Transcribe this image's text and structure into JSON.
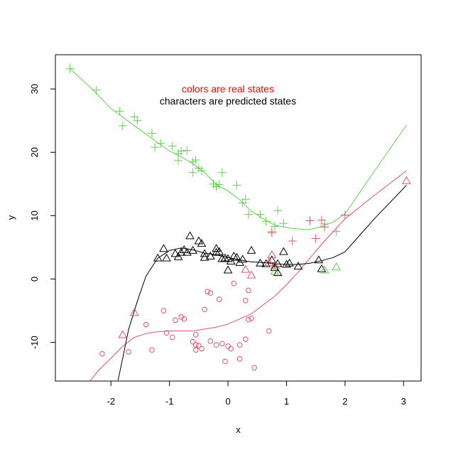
{
  "chart_data": {
    "type": "scatter",
    "xlabel": "x",
    "ylabel": "y",
    "xlim": [
      -2.95,
      3.3
    ],
    "ylim": [
      -16.1,
      35.4
    ],
    "xticks": [
      -2,
      -1,
      0,
      1,
      2,
      3
    ],
    "yticks": [
      -10,
      0,
      10,
      20,
      30
    ],
    "grid": false,
    "annotations": [
      {
        "text": "colors are real states",
        "color": "#ff0000",
        "x": 0,
        "y": 29.8
      },
      {
        "text": "characters are predicted states",
        "color": "#000000",
        "x": 0,
        "y": 27.8
      }
    ],
    "colors": {
      "red": "#df536b",
      "green": "#61d04f",
      "black": "#000000"
    },
    "curves": [
      {
        "color": "#61d04f",
        "points": [
          [
            -2.7,
            33.2
          ],
          [
            -2.3,
            29.8
          ],
          [
            -2.0,
            26.9
          ],
          [
            -1.6,
            24.2
          ],
          [
            -1.3,
            22.2
          ],
          [
            -1.0,
            20.2
          ],
          [
            -0.8,
            19.3
          ],
          [
            -0.6,
            18.2
          ],
          [
            -0.4,
            16.8
          ],
          [
            -0.2,
            14.9
          ],
          [
            0.0,
            13.9
          ],
          [
            0.2,
            12.5
          ],
          [
            0.4,
            10.7
          ],
          [
            0.6,
            9.5
          ],
          [
            0.8,
            8.5
          ],
          [
            1.0,
            8.1
          ],
          [
            1.2,
            7.9
          ],
          [
            1.4,
            7.8
          ],
          [
            1.6,
            8.3
          ],
          [
            1.8,
            9.0
          ],
          [
            2.0,
            10.3
          ],
          [
            2.5,
            17.0
          ],
          [
            3.05,
            24.3
          ]
        ]
      },
      {
        "color": "#df536b",
        "points": [
          [
            -2.35,
            -16.0
          ],
          [
            -2.2,
            -14.3
          ],
          [
            -2.0,
            -12.5
          ],
          [
            -1.8,
            -10.6
          ],
          [
            -1.6,
            -9.2
          ],
          [
            -1.4,
            -8.6
          ],
          [
            -1.2,
            -8.3
          ],
          [
            -1.0,
            -8.2
          ],
          [
            -0.8,
            -8.2
          ],
          [
            -0.6,
            -8.2
          ],
          [
            -0.4,
            -7.9
          ],
          [
            -0.2,
            -7.6
          ],
          [
            0.0,
            -7.1
          ],
          [
            0.2,
            -6.3
          ],
          [
            0.4,
            -5.5
          ],
          [
            0.6,
            -4.1
          ],
          [
            0.8,
            -2.7
          ],
          [
            1.0,
            -0.9
          ],
          [
            1.2,
            1.1
          ],
          [
            1.4,
            3.3
          ],
          [
            1.6,
            5.5
          ],
          [
            2.0,
            9.5
          ],
          [
            2.5,
            13.2
          ],
          [
            3.05,
            17.1
          ]
        ]
      },
      {
        "color": "#000000",
        "points": [
          [
            -1.88,
            -16.0
          ],
          [
            -1.8,
            -12.5
          ],
          [
            -1.7,
            -8.0
          ],
          [
            -1.55,
            -3.5
          ],
          [
            -1.4,
            0.5
          ],
          [
            -1.2,
            3.3
          ],
          [
            -1.0,
            4.5
          ],
          [
            -0.8,
            4.9
          ],
          [
            -0.6,
            4.6
          ],
          [
            -0.4,
            4.1
          ],
          [
            -0.2,
            3.8
          ],
          [
            0.0,
            3.4
          ],
          [
            0.2,
            3.0
          ],
          [
            0.4,
            2.7
          ],
          [
            0.6,
            2.6
          ],
          [
            0.8,
            2.4
          ],
          [
            1.0,
            2.3
          ],
          [
            1.2,
            2.3
          ],
          [
            1.4,
            2.5
          ],
          [
            1.6,
            2.9
          ],
          [
            1.8,
            3.4
          ],
          [
            2.0,
            4.3
          ],
          [
            2.5,
            9.5
          ],
          [
            3.05,
            14.8
          ]
        ]
      }
    ],
    "series": [
      {
        "marker": "plus",
        "color": "#61d04f",
        "points": [
          [
            -2.7,
            33.2
          ],
          [
            -2.25,
            29.8
          ],
          [
            -1.85,
            26.5
          ],
          [
            -1.8,
            24.2
          ],
          [
            -1.6,
            25.6
          ],
          [
            -1.55,
            25.0
          ],
          [
            -1.3,
            23.0
          ],
          [
            -1.25,
            20.8
          ],
          [
            -1.15,
            21.4
          ],
          [
            -0.95,
            21.0
          ],
          [
            -0.85,
            19.8
          ],
          [
            -0.8,
            20.2
          ],
          [
            -0.7,
            20.3
          ],
          [
            -0.85,
            18.7
          ],
          [
            -0.6,
            18.5
          ],
          [
            -0.55,
            18.8
          ],
          [
            -0.6,
            16.8
          ],
          [
            -0.5,
            17.5
          ],
          [
            -0.45,
            17.1
          ],
          [
            -0.25,
            15.0
          ],
          [
            -0.2,
            14.6
          ],
          [
            -0.15,
            14.9
          ],
          [
            -0.1,
            16.8
          ],
          [
            0.15,
            14.8
          ],
          [
            0.25,
            12.0
          ],
          [
            0.3,
            12.6
          ],
          [
            0.35,
            10.2
          ],
          [
            0.55,
            10.2
          ],
          [
            0.65,
            9.1
          ],
          [
            0.75,
            7.5
          ],
          [
            0.8,
            8.3
          ],
          [
            0.85,
            10.8
          ],
          [
            0.95,
            8.8
          ],
          [
            1.65,
            8.7
          ],
          [
            1.85,
            7.5
          ]
        ]
      },
      {
        "marker": "plus",
        "color": "#df536b",
        "points": [
          [
            0.75,
            7.3
          ],
          [
            1.1,
            6.0
          ],
          [
            1.4,
            9.2
          ],
          [
            1.5,
            6.4
          ],
          [
            1.6,
            9.3
          ],
          [
            1.65,
            8.2
          ],
          [
            2.0,
            10.1
          ]
        ]
      },
      {
        "marker": "triangle",
        "color": "#000000",
        "points": [
          [
            -1.2,
            3.3
          ],
          [
            -1.1,
            4.8
          ],
          [
            -1.05,
            3.3
          ],
          [
            -0.9,
            4.0
          ],
          [
            -0.85,
            3.5
          ],
          [
            -0.8,
            4.2
          ],
          [
            -0.75,
            4.6
          ],
          [
            -0.7,
            4.2
          ],
          [
            -0.65,
            6.8
          ],
          [
            -0.6,
            4.5
          ],
          [
            -0.5,
            6.0
          ],
          [
            -0.45,
            5.6
          ],
          [
            -0.4,
            4.0
          ],
          [
            -0.4,
            3.4
          ],
          [
            -0.3,
            3.6
          ],
          [
            -0.2,
            4.2
          ],
          [
            -0.2,
            4.8
          ],
          [
            -0.15,
            4.3
          ],
          [
            -0.1,
            3.2
          ],
          [
            -0.05,
            3.3
          ],
          [
            0.0,
            3.2
          ],
          [
            0.05,
            2.8
          ],
          [
            0.1,
            3.6
          ],
          [
            0.15,
            3.4
          ],
          [
            0.2,
            2.6
          ],
          [
            0.25,
            3.1
          ],
          [
            0.4,
            4.5
          ],
          [
            0.55,
            2.5
          ],
          [
            0.65,
            2.4
          ],
          [
            0.75,
            3.0
          ],
          [
            0.8,
            1.8
          ],
          [
            0.85,
            2.4
          ],
          [
            0.85,
            1.0
          ],
          [
            0.95,
            4.3
          ],
          [
            1.0,
            2.3
          ],
          [
            1.05,
            2.5
          ],
          [
            1.2,
            2.0
          ],
          [
            1.55,
            3.0
          ],
          [
            1.6,
            1.6
          ],
          [
            0.0,
            1.4
          ]
        ]
      },
      {
        "marker": "triangle",
        "color": "#df536b",
        "points": [
          [
            -1.8,
            -8.8
          ],
          [
            -1.6,
            -5.3
          ],
          [
            0.3,
            1.5
          ],
          [
            0.4,
            0.6
          ],
          [
            0.7,
            2.6
          ],
          [
            0.75,
            3.8
          ],
          [
            0.8,
            2.1
          ],
          [
            3.05,
            15.5
          ]
        ]
      },
      {
        "marker": "triangle",
        "color": "#61d04f",
        "points": [
          [
            1.65,
            1.4
          ],
          [
            1.85,
            1.9
          ],
          [
            0.8,
            1.2
          ]
        ]
      },
      {
        "marker": "circle",
        "color": "#df536b",
        "points": [
          [
            -2.15,
            -11.8
          ],
          [
            -1.7,
            -11.5
          ],
          [
            -1.3,
            -11.2
          ],
          [
            -1.4,
            -7.2
          ],
          [
            -1.1,
            -5.0
          ],
          [
            -1.05,
            -8.5
          ],
          [
            -0.95,
            -9.2
          ],
          [
            -0.9,
            -6.5
          ],
          [
            -0.8,
            -6.0
          ],
          [
            -0.75,
            -6.3
          ],
          [
            -0.6,
            -9.9
          ],
          [
            -0.55,
            -10.4
          ],
          [
            -0.55,
            -11.2
          ],
          [
            -0.5,
            -10.5
          ],
          [
            -0.45,
            -11.0
          ],
          [
            -0.4,
            -4.8
          ],
          [
            -0.35,
            -2.0
          ],
          [
            -0.3,
            -2.2
          ],
          [
            -0.3,
            -9.8
          ],
          [
            -0.2,
            -10.4
          ],
          [
            -0.15,
            -3.2
          ],
          [
            -0.1,
            -10.2
          ],
          [
            -0.05,
            -13.0
          ],
          [
            0.0,
            -10.6
          ],
          [
            0.05,
            -11.0
          ],
          [
            0.1,
            -0.7
          ],
          [
            0.2,
            -10.4
          ],
          [
            0.2,
            -12.6
          ],
          [
            0.3,
            -3.4
          ],
          [
            0.35,
            -1.8
          ],
          [
            0.35,
            -6.4
          ],
          [
            0.3,
            -9.5
          ],
          [
            0.45,
            -14.0
          ],
          [
            0.7,
            -8.2
          ],
          [
            -0.55,
            -8.8
          ],
          [
            0.4,
            -6.2
          ]
        ]
      }
    ]
  }
}
